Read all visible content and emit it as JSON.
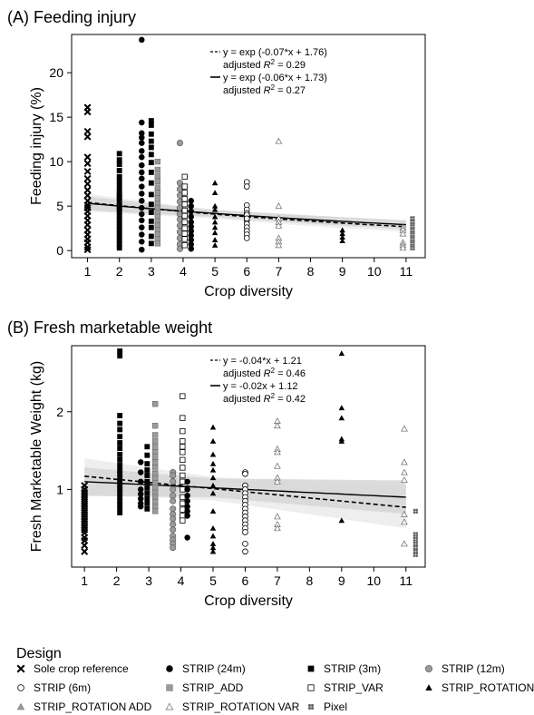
{
  "chart_data": [
    {
      "type": "scatter",
      "title": "(A) Feeding injury",
      "xlabel": "Crop diversity",
      "ylabel": "Feeding injury (%)",
      "xlim": [
        0.5,
        11.6
      ],
      "ylim": [
        -0.8,
        24.3
      ],
      "x_ticks": [
        1,
        2,
        3,
        4,
        5,
        6,
        7,
        8,
        9,
        10,
        11
      ],
      "y_ticks": [
        0,
        5,
        10,
        15,
        20
      ],
      "grid": false,
      "annotations": [
        {
          "style": "dashed",
          "equation": "y = exp (-0.07*x + 1.76)",
          "r2_label": "adjusted",
          "r2_value": "= 0.29"
        },
        {
          "style": "solid",
          "equation": "y = exp (-0.06*x + 1.73)",
          "r2_label": "adjusted",
          "r2_value": "= 0.27"
        }
      ],
      "fits": [
        {
          "style": "dashed",
          "form": "exp",
          "a": -0.07,
          "b": 1.76,
          "x_range": [
            1,
            11
          ]
        },
        {
          "style": "solid",
          "form": "exp",
          "a": -0.06,
          "b": 1.73,
          "x_range": [
            1,
            11
          ]
        }
      ],
      "groups": [
        {
          "design": "sole",
          "x": 1,
          "values": [
            16.1,
            15.6,
            13.4,
            12.8,
            9.8,
            8.9,
            8.1,
            7.5,
            6.8,
            6.2,
            5.6,
            5.1,
            4.8,
            4.4,
            3.9,
            3.4,
            2.9,
            2.3,
            1.8,
            1.3,
            0.9,
            0.4,
            0.1,
            10.5
          ]
        },
        {
          "design": "strip3",
          "x": 2,
          "values": [
            10.9,
            10.2,
            9.7,
            9.0,
            8.3,
            7.8,
            7.3,
            6.8,
            6.4,
            5.9,
            5.5,
            5.1,
            4.7,
            4.3,
            3.9,
            3.5,
            3.1,
            2.7,
            2.3,
            1.9,
            1.5,
            1.1,
            0.7,
            0.3,
            6.1,
            4.9
          ]
        },
        {
          "design": "strip24",
          "x": 2.7,
          "values": [
            23.7,
            14.4,
            12.7,
            12.1,
            11.2,
            10.5,
            9.6,
            8.8,
            8.1,
            7.2,
            6.4,
            5.6,
            4.8,
            4.1,
            3.4,
            2.6,
            1.8,
            1.0,
            0.1,
            13.2
          ]
        },
        {
          "design": "strip3",
          "x": 3,
          "values": [
            14.6,
            14.1,
            13.1,
            12.3,
            11.6,
            10.8,
            9.9,
            8.8,
            7.6,
            6.3,
            5.2,
            4.3,
            3.3,
            2.6,
            1.6,
            0.8
          ]
        },
        {
          "design": "add",
          "x": 3.2,
          "values": [
            10.0,
            8.4,
            7.8,
            7.1,
            6.5,
            5.9,
            5.3,
            4.8,
            4.3,
            3.8,
            3.3,
            2.8,
            2.3,
            1.8,
            1.3,
            0.8,
            9.1
          ]
        },
        {
          "design": "strip12",
          "x": 3.9,
          "values": [
            12.1,
            7.6,
            6.9,
            6.2,
            5.5,
            4.8,
            4.1,
            3.5,
            2.8,
            2.1,
            1.4,
            0.7,
            0.2
          ]
        },
        {
          "design": "var",
          "x": 4.05,
          "values": [
            8.3,
            7.2,
            6.5,
            5.8,
            5.2,
            4.5,
            3.9,
            3.2,
            2.5,
            1.9,
            1.3,
            0.6
          ]
        },
        {
          "design": "strip24",
          "x": 4.25,
          "values": [
            5.6,
            5.0,
            4.4,
            3.8,
            3.2,
            2.7,
            2.2,
            1.7,
            1.2,
            0.7,
            0.2
          ]
        },
        {
          "design": "rotation",
          "x": 5,
          "values": [
            7.6,
            6.5,
            5.0,
            4.6,
            3.8,
            3.2,
            2.6,
            2.0,
            1.2,
            0.6
          ]
        },
        {
          "design": "strip6",
          "x": 6,
          "values": [
            7.7,
            7.2,
            5.1,
            4.6,
            4.2,
            3.8,
            3.4,
            3.0,
            2.6,
            2.2,
            1.8,
            1.4,
            4.0,
            3.6
          ]
        },
        {
          "design": "rotvar",
          "x": 7,
          "values": [
            12.3,
            5.0,
            3.6,
            3.2,
            2.8,
            1.4,
            1.0,
            0.6
          ]
        },
        {
          "design": "rotation",
          "x": 9,
          "values": [
            2.3,
            1.9,
            1.5,
            1.1
          ]
        },
        {
          "design": "rotvar",
          "x": 10.9,
          "values": [
            2.6,
            2.3,
            1.9,
            0.9,
            0.6,
            0.3
          ]
        },
        {
          "design": "pixel",
          "x": 11.2,
          "values": [
            3.6,
            3.2,
            2.7,
            2.3,
            1.8,
            1.3,
            0.8,
            0.3
          ]
        }
      ]
    },
    {
      "type": "scatter",
      "title": "(B) Fresh marketable weight",
      "xlabel": "Crop diversity",
      "ylabel": "Fresh Marketable Weight (kg)",
      "xlim": [
        0.6,
        11.6
      ],
      "ylim": [
        0.0,
        2.85
      ],
      "x_ticks": [
        1,
        2,
        3,
        4,
        5,
        6,
        7,
        8,
        9,
        10,
        11
      ],
      "y_ticks": [
        1,
        2
      ],
      "grid": false,
      "annotations": [
        {
          "style": "dashed",
          "equation": "y = -0.04*x + 1.21",
          "r2_label": "adjusted",
          "r2_value": "= 0.46"
        },
        {
          "style": "solid",
          "equation": "y = -0.02x + 1.12",
          "r2_label": "adjusted",
          "r2_value": "= 0.42"
        }
      ],
      "fits": [
        {
          "style": "dashed",
          "form": "linear",
          "a": -0.04,
          "b": 1.21,
          "x_range": [
            1,
            11
          ]
        },
        {
          "style": "solid",
          "form": "linear",
          "a": -0.02,
          "b": 1.12,
          "x_range": [
            1,
            11
          ]
        }
      ],
      "groups": [
        {
          "design": "sole",
          "x": 1,
          "values": [
            1.05,
            1.0,
            0.96,
            0.92,
            0.88,
            0.84,
            0.8,
            0.76,
            0.72,
            0.68,
            0.64,
            0.6,
            0.56,
            0.52,
            0.48,
            0.44,
            0.38,
            0.34,
            0.28,
            0.2
          ]
        },
        {
          "design": "strip3",
          "x": 2.1,
          "values": [
            2.78,
            2.72,
            1.95,
            1.85,
            1.77,
            1.68,
            1.6,
            1.53,
            1.45,
            1.38,
            1.31,
            1.25,
            1.2,
            1.15,
            1.1,
            1.05,
            1.0,
            0.95,
            0.9,
            0.85,
            0.8,
            0.75,
            0.7
          ]
        },
        {
          "design": "strip3",
          "x": 2.95,
          "values": [
            1.55,
            1.44,
            1.33,
            1.25,
            1.18,
            1.1,
            1.02,
            0.95,
            0.88,
            0.82,
            0.75
          ]
        },
        {
          "design": "strip24",
          "x": 2.75,
          "values": [
            1.35,
            1.22,
            1.1,
            1.0,
            0.94,
            0.88,
            0.82,
            0.78
          ]
        },
        {
          "design": "add",
          "x": 3.2,
          "values": [
            2.1,
            1.82,
            1.7,
            1.62,
            1.55,
            1.48,
            1.42,
            1.35,
            1.28,
            1.2,
            1.14,
            1.08,
            1.02,
            0.96,
            0.9,
            0.84,
            0.78,
            0.72
          ]
        },
        {
          "design": "strip12",
          "x": 3.75,
          "values": [
            1.22,
            1.18,
            1.1,
            1.0,
            0.92,
            0.85,
            0.75,
            0.68,
            0.62,
            0.55,
            0.48,
            0.4,
            0.35,
            0.3,
            0.25
          ]
        },
        {
          "design": "var",
          "x": 4.05,
          "values": [
            2.2,
            1.92,
            1.75,
            1.62,
            1.55,
            1.48,
            1.38,
            1.28,
            1.18,
            1.1,
            1.0,
            0.9,
            0.82,
            0.74,
            0.66,
            0.6
          ]
        },
        {
          "design": "strip24",
          "x": 4.2,
          "values": [
            1.1,
            1.0,
            0.92,
            0.85,
            0.78,
            0.72,
            0.66,
            0.38
          ]
        },
        {
          "design": "rotation",
          "x": 5,
          "values": [
            1.8,
            1.62,
            1.45,
            1.33,
            1.25,
            1.15,
            1.05,
            0.95,
            0.72,
            0.5,
            0.4,
            0.3,
            0.25,
            0.2
          ]
        },
        {
          "design": "strip6",
          "x": 6,
          "values": [
            1.22,
            1.2,
            1.05,
            1.0,
            0.95,
            0.9,
            0.85,
            0.8,
            0.75,
            0.7,
            0.65,
            0.6,
            0.55,
            0.5,
            0.45,
            0.3,
            0.2
          ]
        },
        {
          "design": "rotvar",
          "x": 7,
          "values": [
            1.88,
            1.82,
            1.52,
            1.48,
            1.3,
            1.15,
            1.1,
            0.65,
            0.55,
            0.5
          ]
        },
        {
          "design": "rotation",
          "x": 9,
          "values": [
            2.75,
            2.05,
            1.92,
            1.65,
            1.62,
            0.6
          ]
        },
        {
          "design": "rotvar",
          "x": 10.95,
          "values": [
            1.78,
            1.35,
            1.22,
            1.12,
            0.68,
            0.58,
            0.3
          ]
        },
        {
          "design": "pixel",
          "x": 11.3,
          "values": [
            0.72,
            0.42,
            0.36,
            0.3,
            0.25,
            0.2,
            0.16
          ]
        }
      ]
    }
  ],
  "legend": {
    "title": "Design",
    "entries": [
      {
        "key": "sole",
        "label": "Sole crop reference"
      },
      {
        "key": "strip24",
        "label": "STRIP (24m)"
      },
      {
        "key": "strip3",
        "label": "STRIP (3m)"
      },
      {
        "key": "strip12",
        "label": "STRIP (12m)"
      },
      {
        "key": "strip6",
        "label": "STRIP (6m)"
      },
      {
        "key": "add",
        "label": "STRIP_ADD"
      },
      {
        "key": "var",
        "label": "STRIP_VAR"
      },
      {
        "key": "rotation",
        "label": "STRIP_ROTATION"
      },
      {
        "key": "rotadd",
        "label": "STRIP_ROTATION ADD"
      },
      {
        "key": "rotvar",
        "label": "STRIP_ROTATION VAR"
      },
      {
        "key": "pixel",
        "label": "Pixel"
      }
    ]
  },
  "colors": {
    "black": "#000000",
    "grey": "#9a9a9a",
    "light_grey": "#c8c8c8",
    "band_dark": "#d6d6d6",
    "band_light": "#ebebeb"
  }
}
